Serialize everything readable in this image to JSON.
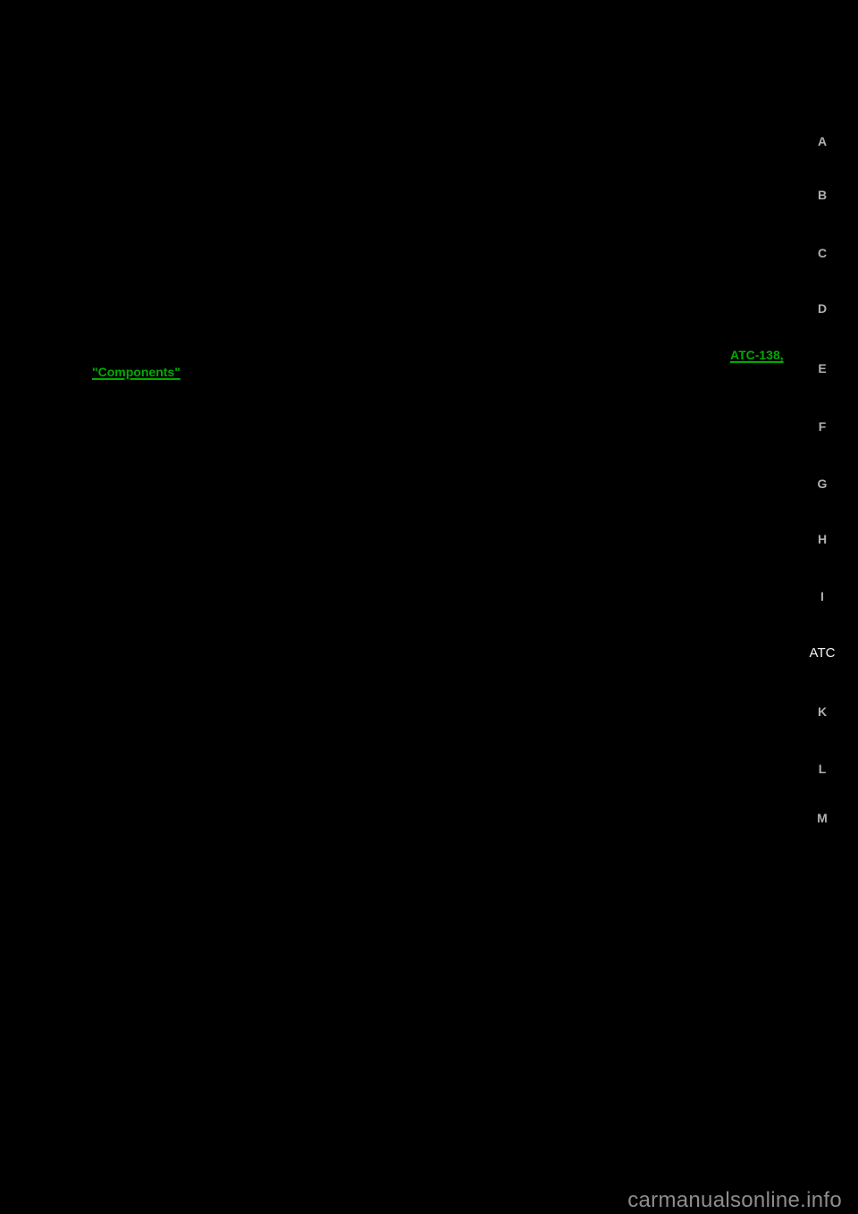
{
  "page": {
    "background_color": "#000000"
  },
  "links": {
    "atc_page": {
      "label": "ATC-138,",
      "color": "#00AB00"
    },
    "components": {
      "label": "\"Components\"",
      "color": "#00AB00"
    }
  },
  "side_index": {
    "letter_color": "#B0B0B0",
    "current_color": "#F5F5F5",
    "items": [
      {
        "label": "A"
      },
      {
        "label": "B"
      },
      {
        "label": "C"
      },
      {
        "label": "D"
      },
      {
        "label": "E"
      },
      {
        "label": "F"
      },
      {
        "label": "G"
      },
      {
        "label": "H"
      },
      {
        "label": "I"
      },
      {
        "label": "ATC",
        "current": true
      },
      {
        "label": "K"
      },
      {
        "label": "L"
      },
      {
        "label": "M"
      }
    ]
  },
  "watermark": {
    "text": "carmanualsonline.info",
    "color": "#8D8D8D"
  }
}
